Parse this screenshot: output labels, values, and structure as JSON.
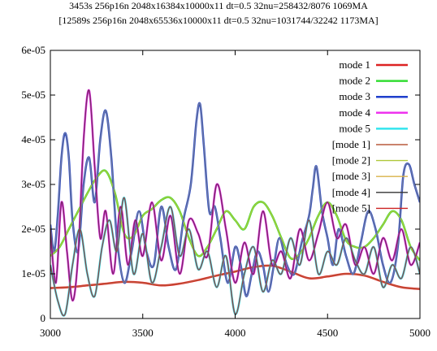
{
  "chart_data": {
    "type": "line",
    "title_lines": [
      "3453s 256p16n 2048x16384x10000x11  dt=0.5 32nu=258432/8076 1069MA",
      "[12589s 256p16n 2048x65536x10000x11 dt=0.5 32nu=1031744/32242 1173MA]"
    ],
    "xlabel": "",
    "ylabel": "",
    "xlim": [
      3000,
      5000
    ],
    "ylim": [
      0,
      6e-05
    ],
    "x_ticks": [
      {
        "value": 3000,
        "label": "3000"
      },
      {
        "value": 3500,
        "label": "3500"
      },
      {
        "value": 4000,
        "label": "4000"
      },
      {
        "value": 4500,
        "label": "4500"
      },
      {
        "value": 5000,
        "label": "5000"
      }
    ],
    "y_ticks": [
      {
        "value": 0,
        "label": "0"
      },
      {
        "value": 1e-05,
        "label": "1e-05"
      },
      {
        "value": 2e-05,
        "label": "2e-05"
      },
      {
        "value": 3e-05,
        "label": "3e-05"
      },
      {
        "value": 4e-05,
        "label": "4e-05"
      },
      {
        "value": 5e-05,
        "label": "5e-05"
      },
      {
        "value": 6e-05,
        "label": "6e-05"
      }
    ],
    "grid": false,
    "legend_position": "top-right",
    "series": [
      {
        "name": "mode 1",
        "color": "#dd2222",
        "width": 2.5,
        "legend_swatch": true,
        "x": [
          3000,
          3100,
          3200,
          3300,
          3400,
          3500,
          3600,
          3700,
          3800,
          3900,
          4000,
          4100,
          4200,
          4300,
          4400,
          4500,
          4600,
          4700,
          4800,
          4900,
          5000
        ],
        "y": [
          6.8e-06,
          7e-06,
          7.4e-06,
          7.8e-06,
          8.2e-06,
          8e-06,
          7.4e-06,
          7.8e-06,
          8.6e-06,
          9.6e-06,
          1.05e-05,
          1.15e-05,
          1.18e-05,
          1.05e-05,
          9e-06,
          9.4e-06,
          1e-05,
          9.6e-06,
          8.2e-06,
          7e-06,
          6.6e-06
        ]
      },
      {
        "name": "mode 2",
        "color": "#33dd33",
        "width": 2.5,
        "legend_swatch": true,
        "x": [
          3000,
          3050,
          3100,
          3150,
          3200,
          3250,
          3300,
          3350,
          3400,
          3450,
          3500,
          3550,
          3600,
          3650,
          3700,
          3750,
          3800,
          3850,
          3900,
          3950,
          4000,
          4050,
          4100,
          4150,
          4200,
          4250,
          4300,
          4350,
          4400,
          4450,
          4500,
          4550,
          4600,
          4650,
          4700,
          4750,
          4800,
          4850,
          4900,
          4950,
          5000
        ],
        "y": [
          1.4e-05,
          1.6e-05,
          2e-05,
          2.4e-05,
          2.8e-05,
          3.15e-05,
          3.3e-05,
          2.8e-05,
          1.9e-05,
          1.85e-05,
          2.3e-05,
          2.45e-05,
          2.65e-05,
          2.7e-05,
          2.4e-05,
          1.8e-05,
          1.4e-05,
          1.6e-05,
          2e-05,
          2.4e-05,
          2.2e-05,
          2e-05,
          2.5e-05,
          2.6e-05,
          2.3e-05,
          1.8e-05,
          1.35e-05,
          1.45e-05,
          1.8e-05,
          2.3e-05,
          2.6e-05,
          2.3e-05,
          1.75e-05,
          1.6e-05,
          1.6e-05,
          1.8e-05,
          2.1e-05,
          2.4e-05,
          2.2e-05,
          1.6e-05,
          1.3e-05
        ]
      },
      {
        "name": "mode 3",
        "color": "#1f3fcc",
        "width": 2.5,
        "legend_swatch": true,
        "x": [
          3000,
          3020,
          3040,
          3060,
          3080,
          3100,
          3120,
          3150,
          3180,
          3210,
          3240,
          3270,
          3300,
          3330,
          3360,
          3400,
          3440,
          3480,
          3520,
          3560,
          3600,
          3640,
          3680,
          3720,
          3760,
          3790,
          3810,
          3830,
          3860,
          3890,
          3920,
          3960,
          4000,
          4030,
          4060,
          4090,
          4120,
          4150,
          4180,
          4210,
          4240,
          4280,
          4320,
          4360,
          4400,
          4420,
          4440,
          4470,
          4500,
          4530,
          4560,
          4600,
          4640,
          4680,
          4720,
          4760,
          4800,
          4840,
          4880,
          4910,
          4940,
          4970,
          5000
        ],
        "y": [
          2.1e-05,
          1.5e-05,
          2.3e-05,
          3.6e-05,
          4.15e-05,
          3.6e-05,
          2.2e-05,
          1.5e-05,
          3e-05,
          3.6e-05,
          2.6e-05,
          4e-05,
          4.65e-05,
          3.6e-05,
          1.8e-05,
          8e-06,
          1.5e-05,
          2.4e-05,
          1.5e-05,
          1.2e-05,
          2.5e-05,
          1.6e-05,
          1.1e-05,
          2.2e-05,
          3e-05,
          4.4e-05,
          4.8e-05,
          3.9e-05,
          2.4e-05,
          2.5e-05,
          1.8e-05,
          8e-06,
          1.6e-05,
          1.2e-05,
          5e-06,
          1e-05,
          1.5e-05,
          1.2e-05,
          6e-06,
          1.2e-05,
          1.8e-05,
          1.2e-05,
          1e-05,
          1.7e-05,
          2.3e-05,
          2.9e-05,
          3.4e-05,
          2.4e-05,
          1.8e-05,
          1.2e-05,
          2e-05,
          1.4e-05,
          1e-05,
          1.7e-05,
          2.4e-05,
          2e-05,
          1.2e-05,
          8e-06,
          1.6e-05,
          3.2e-05,
          3.45e-05,
          3e-05,
          2.6e-05
        ]
      },
      {
        "name": "mode 4",
        "color": "#ee33ee",
        "width": 2.5,
        "legend_swatch": true,
        "x": [
          3000,
          3030,
          3060,
          3090,
          3120,
          3150,
          3180,
          3210,
          3240,
          3270,
          3300,
          3340,
          3380,
          3420,
          3460,
          3500,
          3550,
          3600,
          3650,
          3700,
          3750,
          3800,
          3850,
          3900,
          3950,
          4000,
          4050,
          4100,
          4150,
          4200,
          4250,
          4300,
          4350,
          4400,
          4450,
          4500,
          4550,
          4600,
          4650,
          4700,
          4750,
          4800,
          4850,
          4900,
          4950,
          5000
        ],
        "y": [
          2e-05,
          8e-06,
          2.6e-05,
          1.5e-05,
          4e-06,
          1.4e-05,
          4e-05,
          5.1e-05,
          3.4e-05,
          1.8e-05,
          2.4e-05,
          1e-05,
          2.5e-05,
          1.2e-05,
          2.2e-05,
          1.4e-05,
          2.6e-05,
          1.3e-05,
          2.3e-05,
          1e-05,
          2.2e-05,
          1.9e-05,
          1.4e-05,
          3e-05,
          2e-05,
          8e-06,
          1.7e-05,
          1e-05,
          2.4e-05,
          1.2e-05,
          1.5e-05,
          9e-06,
          2e-05,
          1.3e-05,
          1.9e-05,
          2.6e-05,
          1.8e-05,
          2.1e-05,
          1.2e-05,
          1.6e-05,
          1e-05,
          1.8e-05,
          1.3e-05,
          2e-05,
          1.2e-05,
          1.7e-05
        ]
      },
      {
        "name": "mode 5",
        "color": "#33e5ee",
        "width": 2.5,
        "legend_swatch": true,
        "x": [
          3000,
          3040,
          3080,
          3120,
          3160,
          3200,
          3240,
          3280,
          3320,
          3360,
          3400,
          3450,
          3500,
          3550,
          3600,
          3650,
          3700,
          3750,
          3800,
          3850,
          3900,
          3950,
          4000,
          4050,
          4100,
          4150,
          4200,
          4250,
          4300,
          4350,
          4400,
          4450,
          4500,
          4550,
          4600,
          4650,
          4700,
          4750,
          4800,
          4850,
          4900,
          4950,
          5000
        ],
        "y": [
          1.2e-05,
          4e-06,
          1e-06,
          1.2e-05,
          2e-05,
          1e-05,
          5e-06,
          1.6e-05,
          2.2e-05,
          1.5e-05,
          2.7e-05,
          1e-05,
          1.9e-05,
          8e-06,
          1.6e-05,
          2.5e-05,
          1.4e-05,
          2e-05,
          1.1e-05,
          1.5e-05,
          7e-06,
          1.4e-05,
          1e-06,
          1e-05,
          1.6e-05,
          6e-06,
          1.3e-05,
          1e-05,
          1.8e-05,
          1.2e-05,
          2.2e-05,
          1e-05,
          1.5e-05,
          1.2e-05,
          1.8e-05,
          1.3e-05,
          1e-05,
          1.6e-05,
          7e-06,
          1.2e-05,
          9e-06,
          1.6e-05,
          1e-05
        ]
      },
      {
        "name": "[mode 1]",
        "color": "#b85a3c",
        "width": 1.2,
        "legend_swatch": true,
        "x": [
          3000,
          3100,
          3200,
          3300,
          3400,
          3500,
          3600,
          3700,
          3800,
          3900,
          4000,
          4100,
          4200,
          4300,
          4400,
          4500,
          4600,
          4700,
          4800,
          4900,
          5000
        ],
        "y": [
          6.8e-06,
          7e-06,
          7.4e-06,
          7.8e-06,
          8.2e-06,
          8e-06,
          7.4e-06,
          7.8e-06,
          8.6e-06,
          9.6e-06,
          1.05e-05,
          1.15e-05,
          1.18e-05,
          1.05e-05,
          9e-06,
          9.4e-06,
          1e-05,
          9.6e-06,
          8.2e-06,
          7e-06,
          6.6e-06
        ]
      },
      {
        "name": "[mode 2]",
        "color": "#b0c83a",
        "width": 1.4,
        "legend_swatch": true,
        "x": [
          3000,
          3050,
          3100,
          3150,
          3200,
          3250,
          3300,
          3350,
          3400,
          3450,
          3500,
          3550,
          3600,
          3650,
          3700,
          3750,
          3800,
          3850,
          3900,
          3950,
          4000,
          4050,
          4100,
          4150,
          4200,
          4250,
          4300,
          4350,
          4400,
          4450,
          4500,
          4550,
          4600,
          4650,
          4700,
          4750,
          4800,
          4850,
          4900,
          4950,
          5000
        ],
        "y": [
          1.4e-05,
          1.6e-05,
          2e-05,
          2.4e-05,
          2.8e-05,
          3.15e-05,
          3.3e-05,
          2.8e-05,
          1.9e-05,
          1.85e-05,
          2.3e-05,
          2.45e-05,
          2.65e-05,
          2.7e-05,
          2.4e-05,
          1.8e-05,
          1.4e-05,
          1.6e-05,
          2e-05,
          2.4e-05,
          2.2e-05,
          2e-05,
          2.5e-05,
          2.6e-05,
          2.3e-05,
          1.8e-05,
          1.35e-05,
          1.45e-05,
          1.8e-05,
          2.3e-05,
          2.6e-05,
          2.3e-05,
          1.75e-05,
          1.6e-05,
          1.6e-05,
          1.8e-05,
          2.1e-05,
          2.4e-05,
          2.2e-05,
          1.6e-05,
          1.3e-05
        ]
      },
      {
        "name": "[mode 3]",
        "color": "#6e7a9e",
        "width": 1.4,
        "legend_swatch": false,
        "x": [
          3000,
          3020,
          3040,
          3060,
          3080,
          3100,
          3120,
          3150,
          3180,
          3210,
          3240,
          3270,
          3300,
          3330,
          3360,
          3400,
          3440,
          3480,
          3520,
          3560,
          3600,
          3640,
          3680,
          3720,
          3760,
          3790,
          3810,
          3830,
          3860,
          3890,
          3920,
          3960,
          4000,
          4030,
          4060,
          4090,
          4120,
          4150,
          4180,
          4210,
          4240,
          4280,
          4320,
          4360,
          4400,
          4420,
          4440,
          4470,
          4500,
          4530,
          4560,
          4600,
          4640,
          4680,
          4720,
          4760,
          4800,
          4840,
          4880,
          4910,
          4940,
          4970,
          5000
        ],
        "y": [
          2.1e-05,
          1.5e-05,
          2.3e-05,
          3.6e-05,
          4.15e-05,
          3.6e-05,
          2.2e-05,
          1.5e-05,
          3e-05,
          3.6e-05,
          2.6e-05,
          4e-05,
          4.65e-05,
          3.6e-05,
          1.8e-05,
          8e-06,
          1.5e-05,
          2.4e-05,
          1.5e-05,
          1.2e-05,
          2.5e-05,
          1.6e-05,
          1.1e-05,
          2.2e-05,
          3e-05,
          4.4e-05,
          4.8e-05,
          3.9e-05,
          2.4e-05,
          2.5e-05,
          1.8e-05,
          8e-06,
          1.6e-05,
          1.2e-05,
          5e-06,
          1e-05,
          1.5e-05,
          1.2e-05,
          6e-06,
          1.2e-05,
          1.8e-05,
          1.2e-05,
          1e-05,
          1.7e-05,
          2.3e-05,
          2.9e-05,
          3.4e-05,
          2.4e-05,
          1.8e-05,
          1.2e-05,
          2e-05,
          1.4e-05,
          1e-05,
          1.7e-05,
          2.4e-05,
          2e-05,
          1.2e-05,
          8e-06,
          1.6e-05,
          3.2e-05,
          3.45e-05,
          3e-05,
          2.6e-05
        ]
      },
      {
        "name": "[mode 4]",
        "color": "#7a2a6a",
        "width": 1.4,
        "legend_swatch": true,
        "x": [
          3000,
          3030,
          3060,
          3090,
          3120,
          3150,
          3180,
          3210,
          3240,
          3270,
          3300,
          3340,
          3380,
          3420,
          3460,
          3500,
          3550,
          3600,
          3650,
          3700,
          3750,
          3800,
          3850,
          3900,
          3950,
          4000,
          4050,
          4100,
          4150,
          4200,
          4250,
          4300,
          4350,
          4400,
          4450,
          4500,
          4550,
          4600,
          4650,
          4700,
          4750,
          4800,
          4850,
          4900,
          4950,
          5000
        ],
        "y": [
          2e-05,
          8e-06,
          2.6e-05,
          1.5e-05,
          4e-06,
          1.4e-05,
          4e-05,
          5.1e-05,
          3.4e-05,
          1.8e-05,
          2.4e-05,
          1e-05,
          2.5e-05,
          1.2e-05,
          2.2e-05,
          1.4e-05,
          2.6e-05,
          1.3e-05,
          2.3e-05,
          1e-05,
          2.2e-05,
          1.9e-05,
          1.4e-05,
          3e-05,
          2e-05,
          8e-06,
          1.7e-05,
          1e-05,
          2.4e-05,
          1.2e-05,
          1.5e-05,
          9e-06,
          2e-05,
          1.3e-05,
          1.9e-05,
          2.6e-05,
          1.8e-05,
          2.1e-05,
          1.2e-05,
          1.6e-05,
          1e-05,
          1.8e-05,
          1.3e-05,
          2e-05,
          1.2e-05,
          1.7e-05
        ]
      },
      {
        "name": "[mode 5]",
        "color": "#8a4a4a",
        "width": 1.4,
        "legend_swatch": true,
        "x": [
          3000,
          3040,
          3080,
          3120,
          3160,
          3200,
          3240,
          3280,
          3320,
          3360,
          3400,
          3450,
          3500,
          3550,
          3600,
          3650,
          3700,
          3750,
          3800,
          3850,
          3900,
          3950,
          4000,
          4050,
          4100,
          4150,
          4200,
          4250,
          4300,
          4350,
          4400,
          4450,
          4500,
          4550,
          4600,
          4650,
          4700,
          4750,
          4800,
          4850,
          4900,
          4950,
          5000
        ],
        "y": [
          1.2e-05,
          4e-06,
          1e-06,
          1.2e-05,
          2e-05,
          1e-05,
          5e-06,
          1.6e-05,
          2.2e-05,
          1.5e-05,
          2.7e-05,
          1e-05,
          1.9e-05,
          8e-06,
          1.6e-05,
          2.5e-05,
          1.4e-05,
          2e-05,
          1.1e-05,
          1.5e-05,
          7e-06,
          1.4e-05,
          1e-06,
          1e-05,
          1.6e-05,
          6e-06,
          1.3e-05,
          1e-05,
          1.8e-05,
          1.2e-05,
          2.2e-05,
          1e-05,
          1.5e-05,
          1.2e-05,
          1.8e-05,
          1.3e-05,
          1e-05,
          1.6e-05,
          7e-06,
          1.2e-05,
          9e-06,
          1.6e-05,
          1e-05
        ]
      }
    ],
    "legend_swatch_colors": {
      "[mode 3]": "#d8b24a",
      "[mode 4]": "#333333",
      "[mode 5]": "#cc2222"
    }
  }
}
